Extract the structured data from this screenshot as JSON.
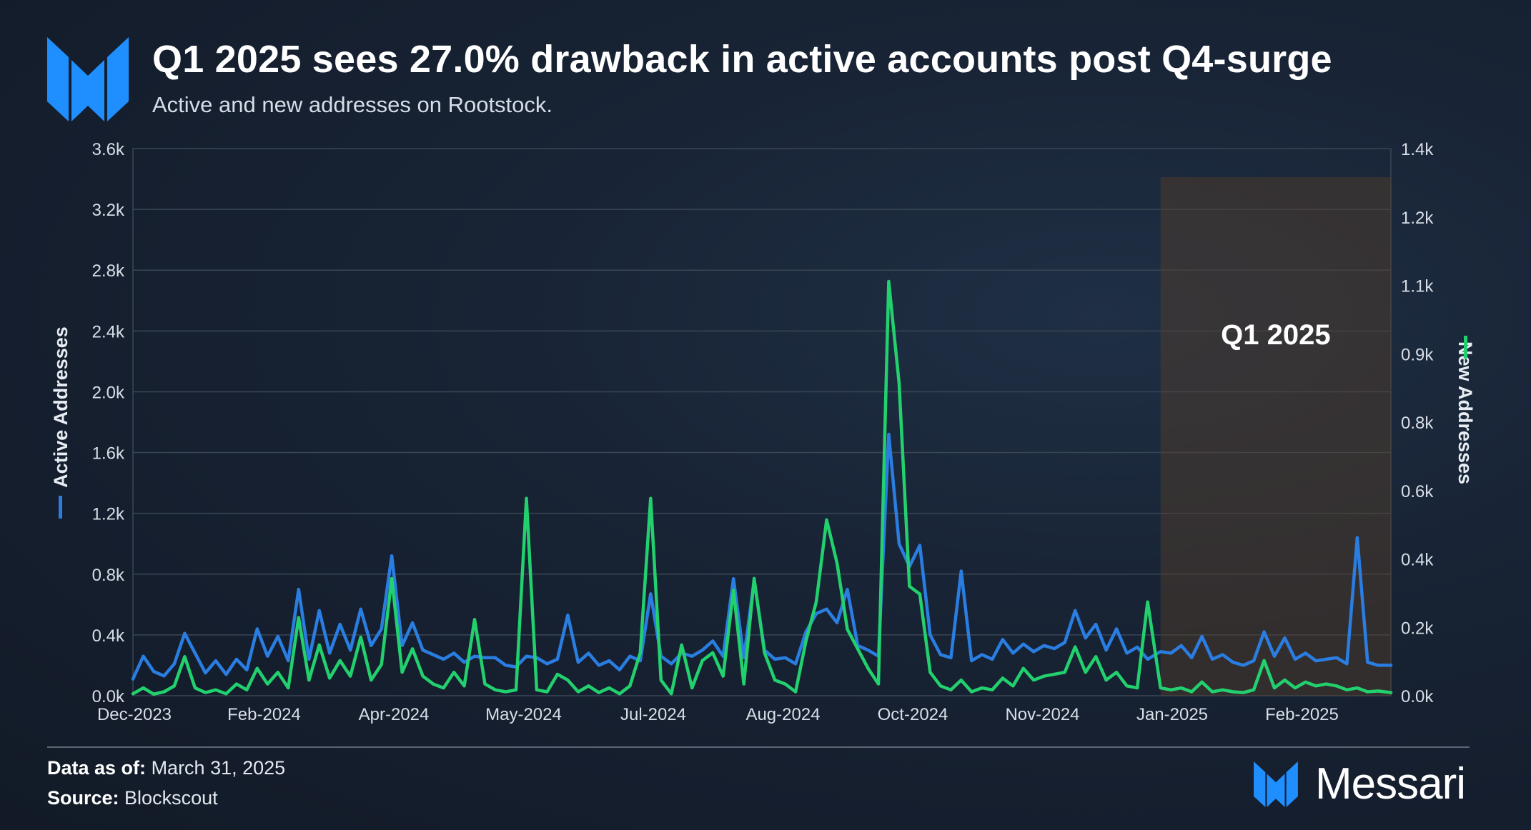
{
  "header": {
    "title": "Q1 2025 sees 27.0% drawback in active accounts post Q4-surge",
    "subtitle": "Active and new addresses on Rootstock."
  },
  "footer": {
    "data_as_of_label": "Data as of:",
    "data_as_of_value": "March 31, 2025",
    "source_label": "Source:",
    "source_value": "Blockscout",
    "brand": "Messari"
  },
  "colors": {
    "accent_blue": "#1f8fff",
    "active_series": "#2a7de1",
    "new_series": "#22d06e",
    "q1_shade": "#5a4028"
  },
  "chart_data": {
    "type": "line",
    "x_ticks": [
      "Dec-2023",
      "Feb-2024",
      "Apr-2024",
      "May-2024",
      "Jul-2024",
      "Aug-2024",
      "Oct-2024",
      "Nov-2024",
      "Jan-2025",
      "Feb-2025"
    ],
    "x_range": [
      "2023-12-01",
      "2025-03-31"
    ],
    "y_left": {
      "label": "Active Addresses",
      "range": [
        0,
        3600
      ],
      "ticks": [
        "0.0k",
        "0.4k",
        "0.8k",
        "1.2k",
        "1.6k",
        "2.0k",
        "2.4k",
        "2.8k",
        "3.2k",
        "3.6k"
      ]
    },
    "y_right": {
      "label": "New Addresses",
      "range": [
        0,
        1400
      ],
      "ticks": [
        "0.0k",
        "0.2k",
        "0.4k",
        "0.6k",
        "0.8k",
        "0.9k",
        "1.1k",
        "1.2k",
        "1.4k"
      ]
    },
    "highlight": {
      "label": "Q1 2025",
      "start": "2025-01-01",
      "end": "2025-03-31"
    },
    "grid": true,
    "series": [
      {
        "name": "Active Addresses",
        "axis": "left",
        "points": [
          [
            "2023-12-01",
            110
          ],
          [
            "2023-12-05",
            260
          ],
          [
            "2023-12-09",
            160
          ],
          [
            "2023-12-13",
            130
          ],
          [
            "2023-12-17",
            210
          ],
          [
            "2023-12-21",
            410
          ],
          [
            "2023-12-25",
            280
          ],
          [
            "2023-12-29",
            150
          ],
          [
            "2024-01-02",
            230
          ],
          [
            "2024-01-06",
            140
          ],
          [
            "2024-01-10",
            240
          ],
          [
            "2024-01-14",
            170
          ],
          [
            "2024-01-18",
            440
          ],
          [
            "2024-01-22",
            260
          ],
          [
            "2024-01-26",
            390
          ],
          [
            "2024-01-30",
            230
          ],
          [
            "2024-02-03",
            700
          ],
          [
            "2024-02-07",
            240
          ],
          [
            "2024-02-11",
            560
          ],
          [
            "2024-02-15",
            280
          ],
          [
            "2024-02-19",
            470
          ],
          [
            "2024-02-23",
            300
          ],
          [
            "2024-02-27",
            570
          ],
          [
            "2024-03-02",
            330
          ],
          [
            "2024-03-06",
            440
          ],
          [
            "2024-03-10",
            920
          ],
          [
            "2024-03-14",
            330
          ],
          [
            "2024-03-18",
            480
          ],
          [
            "2024-03-22",
            300
          ],
          [
            "2024-03-26",
            270
          ],
          [
            "2024-03-30",
            240
          ],
          [
            "2024-04-03",
            280
          ],
          [
            "2024-04-07",
            220
          ],
          [
            "2024-04-11",
            260
          ],
          [
            "2024-04-15",
            250
          ],
          [
            "2024-04-19",
            250
          ],
          [
            "2024-04-23",
            200
          ],
          [
            "2024-04-27",
            190
          ],
          [
            "2024-05-01",
            260
          ],
          [
            "2024-05-05",
            250
          ],
          [
            "2024-05-09",
            210
          ],
          [
            "2024-05-13",
            240
          ],
          [
            "2024-05-17",
            530
          ],
          [
            "2024-05-21",
            220
          ],
          [
            "2024-05-25",
            280
          ],
          [
            "2024-05-29",
            200
          ],
          [
            "2024-06-02",
            230
          ],
          [
            "2024-06-06",
            170
          ],
          [
            "2024-06-10",
            260
          ],
          [
            "2024-06-14",
            230
          ],
          [
            "2024-06-18",
            670
          ],
          [
            "2024-06-22",
            260
          ],
          [
            "2024-06-26",
            210
          ],
          [
            "2024-06-30",
            280
          ],
          [
            "2024-07-04",
            260
          ],
          [
            "2024-07-08",
            300
          ],
          [
            "2024-07-12",
            360
          ],
          [
            "2024-07-16",
            260
          ],
          [
            "2024-07-20",
            770
          ],
          [
            "2024-07-24",
            250
          ],
          [
            "2024-07-28",
            760
          ],
          [
            "2024-08-01",
            300
          ],
          [
            "2024-08-05",
            240
          ],
          [
            "2024-08-09",
            250
          ],
          [
            "2024-08-13",
            210
          ],
          [
            "2024-08-17",
            420
          ],
          [
            "2024-08-21",
            540
          ],
          [
            "2024-08-25",
            570
          ],
          [
            "2024-08-29",
            480
          ],
          [
            "2024-09-02",
            700
          ],
          [
            "2024-09-06",
            330
          ],
          [
            "2024-09-10",
            300
          ],
          [
            "2024-09-14",
            260
          ],
          [
            "2024-09-18",
            1720
          ],
          [
            "2024-09-22",
            1000
          ],
          [
            "2024-09-26",
            850
          ],
          [
            "2024-09-30",
            990
          ],
          [
            "2024-10-04",
            400
          ],
          [
            "2024-10-08",
            270
          ],
          [
            "2024-10-12",
            250
          ],
          [
            "2024-10-16",
            820
          ],
          [
            "2024-10-20",
            230
          ],
          [
            "2024-10-24",
            270
          ],
          [
            "2024-10-28",
            240
          ],
          [
            "2024-11-01",
            370
          ],
          [
            "2024-11-05",
            280
          ],
          [
            "2024-11-09",
            340
          ],
          [
            "2024-11-13",
            290
          ],
          [
            "2024-11-17",
            330
          ],
          [
            "2024-11-21",
            310
          ],
          [
            "2024-11-25",
            350
          ],
          [
            "2024-11-29",
            560
          ],
          [
            "2024-12-03",
            380
          ],
          [
            "2024-12-07",
            470
          ],
          [
            "2024-12-11",
            300
          ],
          [
            "2024-12-15",
            440
          ],
          [
            "2024-12-19",
            280
          ],
          [
            "2024-12-23",
            320
          ],
          [
            "2024-12-27",
            240
          ],
          [
            "2025-01-01",
            290
          ],
          [
            "2025-01-05",
            280
          ],
          [
            "2025-01-09",
            330
          ],
          [
            "2025-01-13",
            250
          ],
          [
            "2025-01-17",
            390
          ],
          [
            "2025-01-21",
            240
          ],
          [
            "2025-01-25",
            270
          ],
          [
            "2025-01-29",
            220
          ],
          [
            "2025-02-02",
            200
          ],
          [
            "2025-02-06",
            230
          ],
          [
            "2025-02-10",
            420
          ],
          [
            "2025-02-14",
            260
          ],
          [
            "2025-02-18",
            380
          ],
          [
            "2025-02-22",
            240
          ],
          [
            "2025-02-26",
            280
          ],
          [
            "2025-03-02",
            230
          ],
          [
            "2025-03-06",
            240
          ],
          [
            "2025-03-10",
            250
          ],
          [
            "2025-03-14",
            210
          ],
          [
            "2025-03-18",
            1040
          ],
          [
            "2025-03-22",
            220
          ],
          [
            "2025-03-26",
            200
          ],
          [
            "2025-03-31",
            200
          ]
        ]
      },
      {
        "name": "New Addresses",
        "axis": "right",
        "points": [
          [
            "2023-12-01",
            5
          ],
          [
            "2023-12-05",
            20
          ],
          [
            "2023-12-09",
            4
          ],
          [
            "2023-12-13",
            10
          ],
          [
            "2023-12-17",
            25
          ],
          [
            "2023-12-21",
            100
          ],
          [
            "2023-12-25",
            20
          ],
          [
            "2023-12-29",
            8
          ],
          [
            "2024-01-02",
            15
          ],
          [
            "2024-01-06",
            5
          ],
          [
            "2024-01-10",
            30
          ],
          [
            "2024-01-14",
            15
          ],
          [
            "2024-01-18",
            70
          ],
          [
            "2024-01-22",
            30
          ],
          [
            "2024-01-26",
            60
          ],
          [
            "2024-01-30",
            20
          ],
          [
            "2024-02-03",
            200
          ],
          [
            "2024-02-07",
            40
          ],
          [
            "2024-02-11",
            130
          ],
          [
            "2024-02-15",
            45
          ],
          [
            "2024-02-19",
            90
          ],
          [
            "2024-02-23",
            50
          ],
          [
            "2024-02-27",
            150
          ],
          [
            "2024-03-02",
            40
          ],
          [
            "2024-03-06",
            80
          ],
          [
            "2024-03-10",
            300
          ],
          [
            "2024-03-14",
            60
          ],
          [
            "2024-03-18",
            120
          ],
          [
            "2024-03-22",
            50
          ],
          [
            "2024-03-26",
            30
          ],
          [
            "2024-03-30",
            20
          ],
          [
            "2024-04-03",
            60
          ],
          [
            "2024-04-07",
            25
          ],
          [
            "2024-04-11",
            195
          ],
          [
            "2024-04-15",
            30
          ],
          [
            "2024-04-19",
            15
          ],
          [
            "2024-04-23",
            10
          ],
          [
            "2024-04-27",
            15
          ],
          [
            "2024-05-01",
            505
          ],
          [
            "2024-05-05",
            15
          ],
          [
            "2024-05-09",
            10
          ],
          [
            "2024-05-13",
            55
          ],
          [
            "2024-05-17",
            40
          ],
          [
            "2024-05-21",
            10
          ],
          [
            "2024-05-25",
            25
          ],
          [
            "2024-05-29",
            8
          ],
          [
            "2024-06-02",
            20
          ],
          [
            "2024-06-06",
            5
          ],
          [
            "2024-06-10",
            25
          ],
          [
            "2024-06-14",
            110
          ],
          [
            "2024-06-18",
            505
          ],
          [
            "2024-06-22",
            40
          ],
          [
            "2024-06-26",
            5
          ],
          [
            "2024-06-30",
            130
          ],
          [
            "2024-07-04",
            20
          ],
          [
            "2024-07-08",
            90
          ],
          [
            "2024-07-12",
            110
          ],
          [
            "2024-07-16",
            50
          ],
          [
            "2024-07-20",
            270
          ],
          [
            "2024-07-24",
            30
          ],
          [
            "2024-07-28",
            300
          ],
          [
            "2024-08-01",
            110
          ],
          [
            "2024-08-05",
            40
          ],
          [
            "2024-08-09",
            30
          ],
          [
            "2024-08-13",
            10
          ],
          [
            "2024-08-17",
            140
          ],
          [
            "2024-08-21",
            240
          ],
          [
            "2024-08-25",
            450
          ],
          [
            "2024-08-29",
            340
          ],
          [
            "2024-09-02",
            170
          ],
          [
            "2024-09-06",
            120
          ],
          [
            "2024-09-10",
            70
          ],
          [
            "2024-09-14",
            30
          ],
          [
            "2024-09-18",
            1060
          ],
          [
            "2024-09-22",
            800
          ],
          [
            "2024-09-26",
            280
          ],
          [
            "2024-09-30",
            260
          ],
          [
            "2024-10-04",
            60
          ],
          [
            "2024-10-08",
            25
          ],
          [
            "2024-10-12",
            15
          ],
          [
            "2024-10-16",
            40
          ],
          [
            "2024-10-20",
            10
          ],
          [
            "2024-10-24",
            20
          ],
          [
            "2024-10-28",
            15
          ],
          [
            "2024-11-01",
            45
          ],
          [
            "2024-11-05",
            25
          ],
          [
            "2024-11-09",
            70
          ],
          [
            "2024-11-13",
            40
          ],
          [
            "2024-11-17",
            50
          ],
          [
            "2024-11-21",
            55
          ],
          [
            "2024-11-25",
            60
          ],
          [
            "2024-11-29",
            125
          ],
          [
            "2024-12-03",
            60
          ],
          [
            "2024-12-07",
            100
          ],
          [
            "2024-12-11",
            40
          ],
          [
            "2024-12-15",
            60
          ],
          [
            "2024-12-19",
            25
          ],
          [
            "2024-12-23",
            20
          ],
          [
            "2024-12-27",
            240
          ],
          [
            "2025-01-01",
            20
          ],
          [
            "2025-01-05",
            15
          ],
          [
            "2025-01-09",
            20
          ],
          [
            "2025-01-13",
            10
          ],
          [
            "2025-01-17",
            35
          ],
          [
            "2025-01-21",
            10
          ],
          [
            "2025-01-25",
            15
          ],
          [
            "2025-01-29",
            10
          ],
          [
            "2025-02-02",
            8
          ],
          [
            "2025-02-06",
            15
          ],
          [
            "2025-02-10",
            90
          ],
          [
            "2025-02-14",
            20
          ],
          [
            "2025-02-18",
            40
          ],
          [
            "2025-02-22",
            20
          ],
          [
            "2025-02-26",
            35
          ],
          [
            "2025-03-02",
            25
          ],
          [
            "2025-03-06",
            30
          ],
          [
            "2025-03-10",
            25
          ],
          [
            "2025-03-14",
            15
          ],
          [
            "2025-03-18",
            20
          ],
          [
            "2025-03-22",
            10
          ],
          [
            "2025-03-26",
            12
          ],
          [
            "2025-03-31",
            8
          ]
        ]
      }
    ]
  }
}
